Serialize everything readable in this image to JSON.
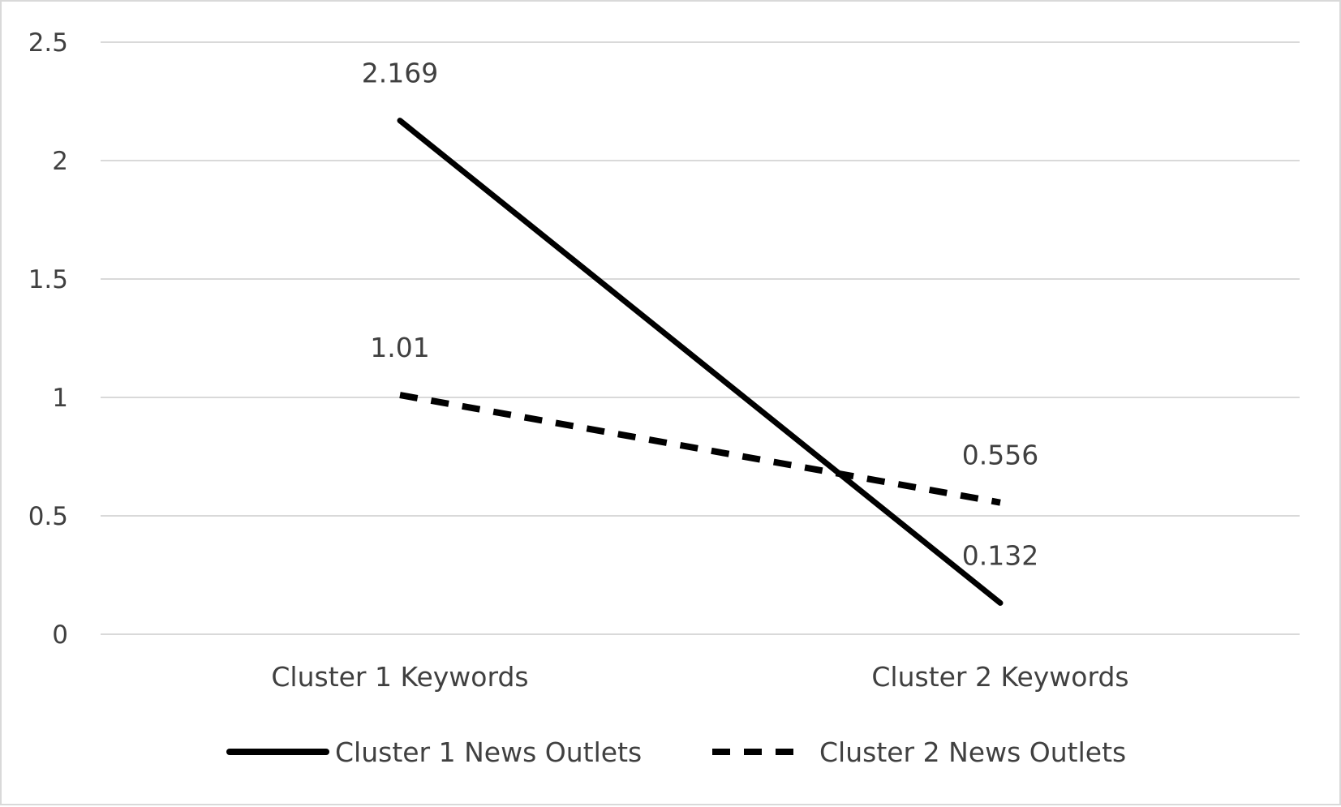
{
  "chart_data": {
    "type": "line",
    "title": "",
    "xlabel": "",
    "ylabel": "",
    "categories": [
      "Cluster 1 Keywords",
      "Cluster 2 Keywords"
    ],
    "ylim": [
      0,
      2.5
    ],
    "yticks": [
      0,
      0.5,
      1,
      1.5,
      2,
      2.5
    ],
    "ytick_labels": [
      "0",
      "0.5",
      "1",
      "1.5",
      "2",
      "2.5"
    ],
    "grid": true,
    "legend_position": "bottom",
    "series": [
      {
        "name": "Cluster 1 News Outlets",
        "values": [
          2.169,
          0.132
        ],
        "labels": [
          "2.169",
          "0.132"
        ],
        "line_style": "solid",
        "color": "#000000"
      },
      {
        "name": "Cluster 2 News Outlets",
        "values": [
          1.01,
          0.556
        ],
        "labels": [
          "1.01",
          "0.556"
        ],
        "line_style": "dashed",
        "color": "#000000"
      }
    ],
    "colors": {
      "grid": "#d9d9d9",
      "text": "#404040",
      "border": "#d9d9d9"
    }
  }
}
